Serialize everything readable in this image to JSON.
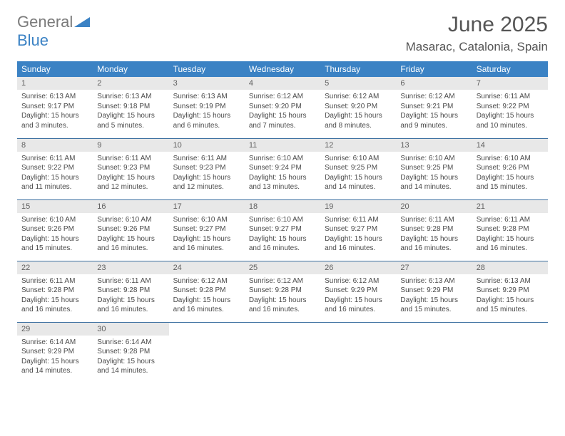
{
  "logo": {
    "word1": "General",
    "word2": "Blue"
  },
  "title": "June 2025",
  "location": "Masarac, Catalonia, Spain",
  "colors": {
    "header_bg": "#3b82c4",
    "header_text": "#ffffff",
    "daynum_bg": "#e8e8e8",
    "row_divider": "#3b6fa0",
    "body_text": "#4a4a4a",
    "title_text": "#555555"
  },
  "weekdays": [
    "Sunday",
    "Monday",
    "Tuesday",
    "Wednesday",
    "Thursday",
    "Friday",
    "Saturday"
  ],
  "days": [
    {
      "n": 1,
      "sunrise": "6:13 AM",
      "sunset": "9:17 PM",
      "daylight": "15 hours and 3 minutes."
    },
    {
      "n": 2,
      "sunrise": "6:13 AM",
      "sunset": "9:18 PM",
      "daylight": "15 hours and 5 minutes."
    },
    {
      "n": 3,
      "sunrise": "6:13 AM",
      "sunset": "9:19 PM",
      "daylight": "15 hours and 6 minutes."
    },
    {
      "n": 4,
      "sunrise": "6:12 AM",
      "sunset": "9:20 PM",
      "daylight": "15 hours and 7 minutes."
    },
    {
      "n": 5,
      "sunrise": "6:12 AM",
      "sunset": "9:20 PM",
      "daylight": "15 hours and 8 minutes."
    },
    {
      "n": 6,
      "sunrise": "6:12 AM",
      "sunset": "9:21 PM",
      "daylight": "15 hours and 9 minutes."
    },
    {
      "n": 7,
      "sunrise": "6:11 AM",
      "sunset": "9:22 PM",
      "daylight": "15 hours and 10 minutes."
    },
    {
      "n": 8,
      "sunrise": "6:11 AM",
      "sunset": "9:22 PM",
      "daylight": "15 hours and 11 minutes."
    },
    {
      "n": 9,
      "sunrise": "6:11 AM",
      "sunset": "9:23 PM",
      "daylight": "15 hours and 12 minutes."
    },
    {
      "n": 10,
      "sunrise": "6:11 AM",
      "sunset": "9:23 PM",
      "daylight": "15 hours and 12 minutes."
    },
    {
      "n": 11,
      "sunrise": "6:10 AM",
      "sunset": "9:24 PM",
      "daylight": "15 hours and 13 minutes."
    },
    {
      "n": 12,
      "sunrise": "6:10 AM",
      "sunset": "9:25 PM",
      "daylight": "15 hours and 14 minutes."
    },
    {
      "n": 13,
      "sunrise": "6:10 AM",
      "sunset": "9:25 PM",
      "daylight": "15 hours and 14 minutes."
    },
    {
      "n": 14,
      "sunrise": "6:10 AM",
      "sunset": "9:26 PM",
      "daylight": "15 hours and 15 minutes."
    },
    {
      "n": 15,
      "sunrise": "6:10 AM",
      "sunset": "9:26 PM",
      "daylight": "15 hours and 15 minutes."
    },
    {
      "n": 16,
      "sunrise": "6:10 AM",
      "sunset": "9:26 PM",
      "daylight": "15 hours and 16 minutes."
    },
    {
      "n": 17,
      "sunrise": "6:10 AM",
      "sunset": "9:27 PM",
      "daylight": "15 hours and 16 minutes."
    },
    {
      "n": 18,
      "sunrise": "6:10 AM",
      "sunset": "9:27 PM",
      "daylight": "15 hours and 16 minutes."
    },
    {
      "n": 19,
      "sunrise": "6:11 AM",
      "sunset": "9:27 PM",
      "daylight": "15 hours and 16 minutes."
    },
    {
      "n": 20,
      "sunrise": "6:11 AM",
      "sunset": "9:28 PM",
      "daylight": "15 hours and 16 minutes."
    },
    {
      "n": 21,
      "sunrise": "6:11 AM",
      "sunset": "9:28 PM",
      "daylight": "15 hours and 16 minutes."
    },
    {
      "n": 22,
      "sunrise": "6:11 AM",
      "sunset": "9:28 PM",
      "daylight": "15 hours and 16 minutes."
    },
    {
      "n": 23,
      "sunrise": "6:11 AM",
      "sunset": "9:28 PM",
      "daylight": "15 hours and 16 minutes."
    },
    {
      "n": 24,
      "sunrise": "6:12 AM",
      "sunset": "9:28 PM",
      "daylight": "15 hours and 16 minutes."
    },
    {
      "n": 25,
      "sunrise": "6:12 AM",
      "sunset": "9:28 PM",
      "daylight": "15 hours and 16 minutes."
    },
    {
      "n": 26,
      "sunrise": "6:12 AM",
      "sunset": "9:29 PM",
      "daylight": "15 hours and 16 minutes."
    },
    {
      "n": 27,
      "sunrise": "6:13 AM",
      "sunset": "9:29 PM",
      "daylight": "15 hours and 15 minutes."
    },
    {
      "n": 28,
      "sunrise": "6:13 AM",
      "sunset": "9:29 PM",
      "daylight": "15 hours and 15 minutes."
    },
    {
      "n": 29,
      "sunrise": "6:14 AM",
      "sunset": "9:29 PM",
      "daylight": "15 hours and 14 minutes."
    },
    {
      "n": 30,
      "sunrise": "6:14 AM",
      "sunset": "9:28 PM",
      "daylight": "15 hours and 14 minutes."
    }
  ],
  "labels": {
    "sunrise": "Sunrise:",
    "sunset": "Sunset:",
    "daylight": "Daylight:"
  }
}
